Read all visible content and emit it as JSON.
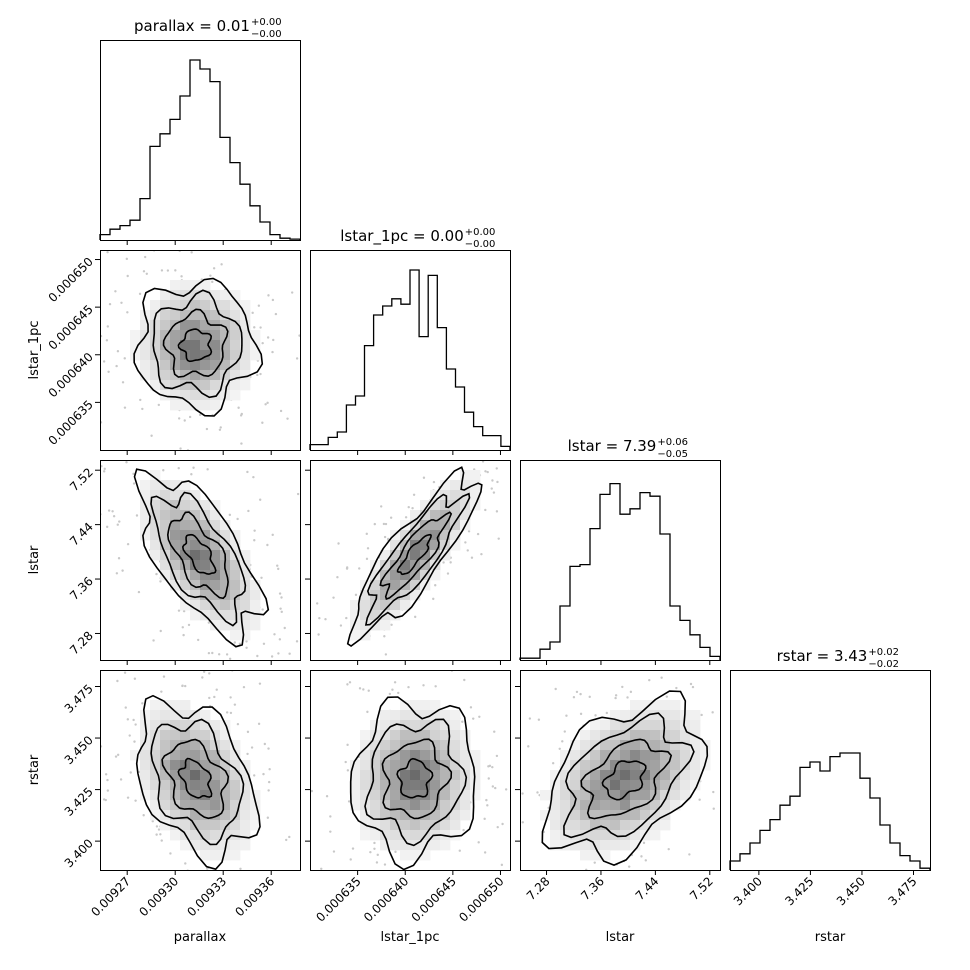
{
  "chart_data": {
    "type": "corner",
    "parameters": [
      "parallax",
      "lstar_1pc",
      "lstar",
      "rstar"
    ],
    "xlabels": [
      "parallax",
      "lstar_1pc",
      "lstar",
      "rstar"
    ],
    "ylabels": [
      "",
      "lstar_1pc",
      "lstar",
      "rstar"
    ],
    "titles": [
      {
        "name": "parallax",
        "value": "0.01",
        "plus": "+0.00",
        "minus": "−0.00"
      },
      {
        "name": "lstar_1pc",
        "value": "0.00",
        "plus": "+0.00",
        "minus": "−0.00"
      },
      {
        "name": "lstar",
        "value": "7.39",
        "plus": "+0.06",
        "minus": "−0.05"
      },
      {
        "name": "rstar",
        "value": "3.43",
        "plus": "+0.02",
        "minus": "−0.02"
      }
    ],
    "ranges": [
      [
        0.009253,
        0.009378
      ],
      [
        0.00063,
        0.000651
      ],
      [
        7.241,
        7.535
      ],
      [
        3.386,
        3.483
      ]
    ],
    "ticks": [
      [
        0.00927,
        0.0093,
        0.00933,
        0.00936
      ],
      [
        0.000635,
        0.00064,
        0.000645,
        0.00065
      ],
      [
        7.28,
        7.36,
        7.44,
        7.52
      ],
      [
        3.4,
        3.425,
        3.45,
        3.475
      ]
    ],
    "tick_labels": [
      [
        "0.00927",
        "0.00930",
        "0.00933",
        "0.00936"
      ],
      [
        "0.000635",
        "0.000640",
        "0.000645",
        "0.000650"
      ],
      [
        "7.28",
        "7.36",
        "7.44",
        "7.52"
      ],
      [
        "3.400",
        "3.425",
        "3.450",
        "3.475"
      ]
    ],
    "histograms": [
      [
        0.03,
        0.06,
        0.08,
        0.11,
        0.23,
        0.52,
        0.59,
        0.67,
        0.8,
        1.0,
        0.95,
        0.88,
        0.57,
        0.43,
        0.31,
        0.19,
        0.1,
        0.03,
        0.01,
        0.005
      ],
      [
        0.03,
        0.03,
        0.07,
        0.1,
        0.25,
        0.3,
        0.58,
        0.75,
        0.8,
        0.84,
        0.81,
        1.0,
        0.63,
        0.97,
        0.68,
        0.45,
        0.35,
        0.21,
        0.13,
        0.08,
        0.08,
        0.02
      ],
      [
        0.01,
        0.01,
        0.06,
        0.1,
        0.3,
        0.52,
        0.53,
        0.73,
        0.92,
        0.98,
        0.81,
        0.84,
        0.93,
        0.91,
        0.7,
        0.3,
        0.22,
        0.14,
        0.07,
        0.02
      ],
      [
        0.05,
        0.09,
        0.15,
        0.22,
        0.28,
        0.36,
        0.41,
        0.57,
        0.6,
        0.55,
        0.63,
        0.65,
        0.65,
        0.51,
        0.4,
        0.25,
        0.15,
        0.08,
        0.05,
        0.01
      ]
    ],
    "pairs": [
      {
        "x": 0,
        "y": 1,
        "mean": [
          0.009313,
          0.000641
        ],
        "sd": [
          1.76e-05,
          3.1e-06
        ],
        "rho": 0.0
      },
      {
        "x": 0,
        "y": 2,
        "mean": [
          0.009315,
          7.395
        ],
        "sd": [
          1.76e-05,
          0.055
        ],
        "rho": -0.62
      },
      {
        "x": 1,
        "y": 2,
        "mean": [
          0.000641,
          7.395
        ],
        "sd": [
          3.1e-06,
          0.055
        ],
        "rho": 0.85
      },
      {
        "x": 0,
        "y": 3,
        "mean": [
          0.009313,
          3.43
        ],
        "sd": [
          1.76e-05,
          0.0175
        ],
        "rho": -0.35
      },
      {
        "x": 1,
        "y": 3,
        "mean": [
          0.000641,
          3.43
        ],
        "sd": [
          3.1e-06,
          0.0175
        ],
        "rho": 0.05
      },
      {
        "x": 2,
        "y": 3,
        "mean": [
          7.395,
          3.43
        ],
        "sd": [
          0.055,
          0.0175
        ],
        "rho": 0.4
      }
    ],
    "contour_levels_sigma": [
      0.5,
      1.0,
      1.5,
      2.0
    ]
  }
}
